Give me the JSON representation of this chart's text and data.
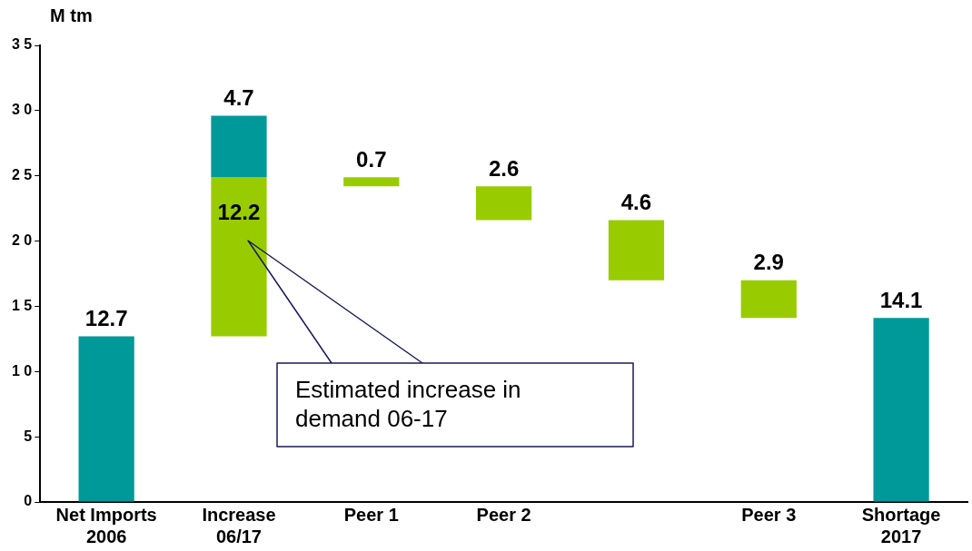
{
  "chart_data": {
    "type": "bar",
    "ylabel": "M tm",
    "categories": [
      "Net Imports\n2006",
      "Increase\n06/17",
      "Peer 1",
      "Peer 2",
      null,
      "Peer 3",
      "Shortage\n2017"
    ],
    "series": [
      {
        "color": "#009999",
        "values": [
          12.7,
          4.7,
          null,
          null,
          null,
          null,
          14.1
        ],
        "base": [
          0,
          24.9,
          null,
          null,
          null,
          null,
          0
        ],
        "value_labels": [
          "12.7",
          "4.7",
          null,
          null,
          null,
          null,
          "14.1"
        ]
      },
      {
        "color": "#99cc00",
        "values": [
          null,
          12.2,
          0.7,
          2.6,
          4.6,
          2.9,
          null
        ],
        "base": [
          null,
          12.7,
          24.2,
          21.6,
          17.0,
          14.1,
          null
        ],
        "value_labels": [
          null,
          "12.2",
          "0.7",
          "2.6",
          "4.6",
          "2.9",
          null
        ]
      }
    ],
    "ylim": [
      0,
      35
    ],
    "yticks": [
      {
        "value": 0,
        "label": "0"
      },
      {
        "value": 5,
        "label": "5"
      },
      {
        "value": 10,
        "label": "1 0"
      },
      {
        "value": 15,
        "label": "1 5"
      },
      {
        "value": 20,
        "label": "2 0"
      },
      {
        "value": 25,
        "label": "2 5"
      },
      {
        "value": 30,
        "label": "3 0"
      },
      {
        "value": 35,
        "label": "3 5"
      }
    ],
    "grid": false,
    "legend": false,
    "annotations": [
      "Estimated increase in\ndemand 06-17"
    ]
  }
}
